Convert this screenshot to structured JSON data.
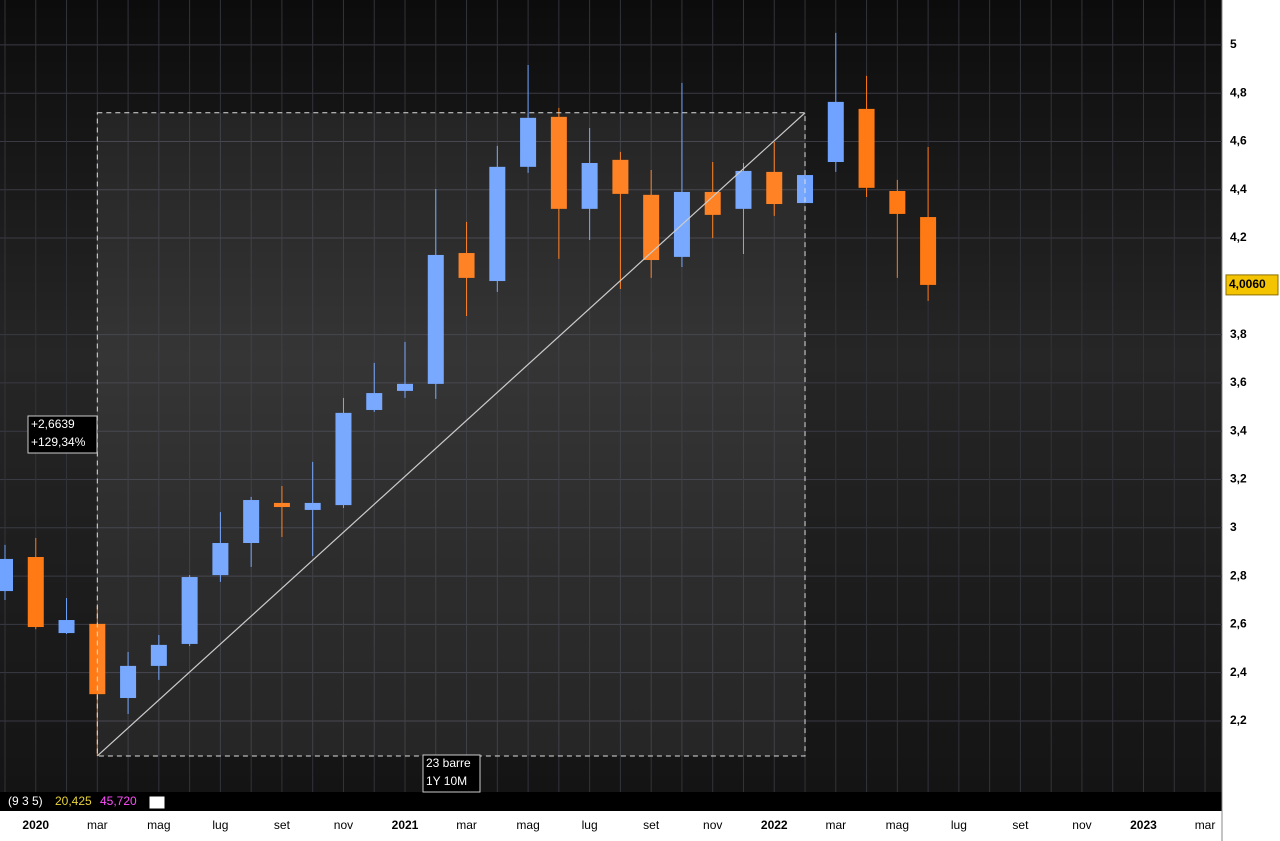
{
  "chart_data": {
    "type": "candlestick",
    "categories": [
      null,
      "2020",
      null,
      "mar",
      null,
      "mag",
      null,
      "lug",
      null,
      "set",
      null,
      "nov",
      null,
      "2021",
      null,
      "mar",
      null,
      "mag",
      null,
      "lug",
      null,
      "set",
      null,
      "nov",
      null,
      "2022",
      null,
      "mar",
      null,
      "mag",
      null,
      "lug",
      null,
      "set",
      null,
      "nov",
      null,
      "2023",
      null,
      "mar"
    ],
    "open": [
      2.738,
      2.879,
      2.564,
      2.602,
      2.295,
      2.428,
      2.519,
      2.804,
      2.937,
      3.103,
      3.074,
      3.094,
      3.488,
      3.567,
      3.596,
      4.138,
      4.022,
      4.495,
      4.702,
      4.321,
      4.524,
      4.379,
      4.122,
      4.391,
      4.321,
      4.474,
      4.345,
      4.515,
      4.735,
      4.395,
      4.287,
      null,
      null,
      null,
      null,
      null,
      null,
      null,
      null,
      null
    ],
    "high": [
      2.929,
      2.958,
      2.709,
      2.676,
      2.486,
      2.556,
      2.804,
      3.065,
      3.128,
      3.173,
      3.273,
      3.538,
      3.683,
      3.77,
      4.403,
      4.267,
      4.582,
      4.917,
      4.739,
      4.656,
      4.557,
      4.482,
      4.843,
      4.515,
      4.511,
      4.598,
      4.461,
      5.05,
      4.872,
      4.441,
      4.577,
      null,
      null,
      null,
      null,
      null,
      null,
      null,
      null,
      null
    ],
    "low": [
      2.701,
      2.58,
      2.56,
      2.055,
      2.229,
      2.37,
      2.51,
      2.776,
      2.838,
      2.962,
      2.883,
      3.082,
      3.48,
      3.538,
      3.534,
      3.877,
      3.977,
      4.47,
      4.114,
      4.192,
      3.989,
      4.035,
      4.08,
      4.2,
      4.134,
      4.292,
      4.345,
      4.474,
      4.37,
      4.035,
      3.94,
      null,
      null,
      null,
      null,
      null,
      null,
      null,
      null,
      null
    ],
    "close": [
      2.871,
      2.589,
      2.618,
      2.311,
      2.428,
      2.515,
      2.796,
      2.937,
      3.115,
      3.086,
      3.103,
      3.476,
      3.558,
      3.596,
      4.13,
      4.035,
      4.495,
      4.698,
      4.321,
      4.511,
      4.383,
      4.109,
      4.391,
      4.296,
      4.478,
      4.341,
      4.461,
      4.764,
      4.408,
      4.3,
      4.006,
      null,
      null,
      null,
      null,
      null,
      null,
      null,
      null,
      null
    ],
    "up_color": "#6fa3ff",
    "down_color": "#ff7a14",
    "ylim": [
      1.914,
      5.186
    ],
    "yticks": [
      {
        "value": 2.2,
        "label": "2,2"
      },
      {
        "value": 2.4,
        "label": "2,4"
      },
      {
        "value": 2.6,
        "label": "2,6"
      },
      {
        "value": 2.8,
        "label": "2,8"
      },
      3,
      {
        "value": 3.2,
        "label": "3,2"
      },
      {
        "value": 3.4,
        "label": "3,4"
      },
      {
        "value": 3.6,
        "label": "3,6"
      },
      {
        "value": 3.8,
        "label": "3,8"
      },
      {
        "value": 4.2,
        "label": "4,2"
      },
      {
        "value": 4.4,
        "label": "4,4"
      },
      {
        "value": 4.6,
        "label": "4,6"
      },
      {
        "value": 4.8,
        "label": "4,8"
      },
      5
    ],
    "grid": true,
    "last_price": {
      "value": 4.006,
      "label": "4,0060"
    },
    "measure": {
      "change": {
        "value": 2.6639,
        "label": "+2,6639"
      },
      "percent": {
        "value": 129.34,
        "label": "+129,34%"
      },
      "bars": "23 barre",
      "span": "1Y 10M"
    },
    "indicator": {
      "params": "(9 3 5)",
      "values": [
        {
          "value": 20.425,
          "label": "20,425"
        },
        {
          "value": 45.72,
          "label": "45,720"
        }
      ]
    }
  }
}
